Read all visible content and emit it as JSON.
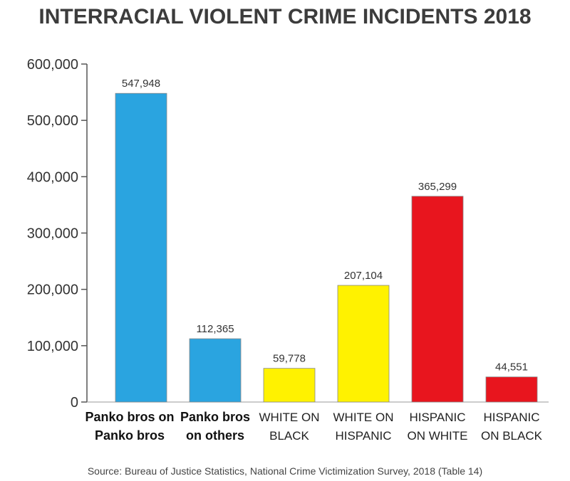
{
  "chart_data": {
    "type": "bar",
    "title": "INTERRACIAL VIOLENT CRIME INCIDENTS 2018",
    "categories": [
      [
        "Panko bros on",
        "Panko bros"
      ],
      [
        "Panko bros",
        "on others"
      ],
      [
        "WHITE ON",
        "BLACK"
      ],
      [
        "WHITE ON",
        "HISPANIC"
      ],
      [
        "HISPANIC",
        "ON WHITE"
      ],
      [
        "HISPANIC",
        "ON BLACK"
      ]
    ],
    "values": [
      547948,
      112365,
      59778,
      207104,
      365299,
      44551
    ],
    "value_labels": [
      "547,948",
      "112,365",
      "59,778",
      "207,104",
      "365,299",
      "44,551"
    ],
    "colors": [
      "#2aa4e0",
      "#2aa4e0",
      "#fff200",
      "#fff200",
      "#e8151e",
      "#e8151e"
    ],
    "ylim": [
      0,
      600000
    ],
    "yticks": [
      0,
      100000,
      200000,
      300000,
      400000,
      500000,
      600000
    ],
    "ytick_labels": [
      "0",
      "100,000",
      "200,000",
      "300,000",
      "400,000",
      "500,000",
      "600,000"
    ],
    "xlabel": "",
    "ylabel": "",
    "grid": false,
    "source": "Source: Bureau of Justice Statistics, National Crime Victimization Survey, 2018 (Table 14)"
  }
}
